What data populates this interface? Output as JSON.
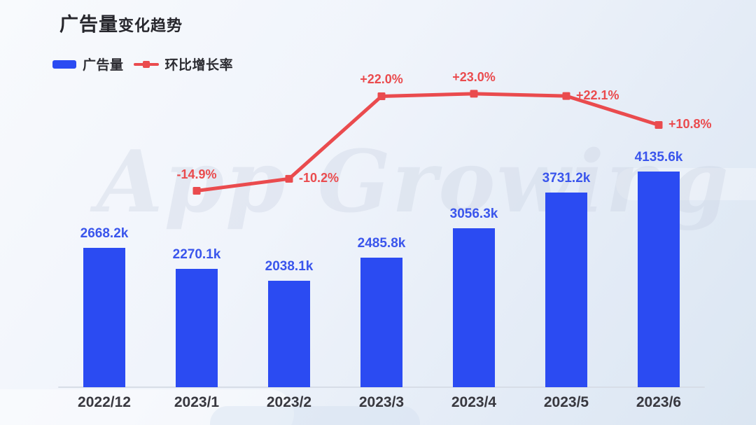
{
  "page": {
    "title_main": "广告量",
    "title_sub": "变化趋势",
    "watermark": "App Growing"
  },
  "colors": {
    "bar": "#2B4BF2",
    "bar_label": "#3A55EC",
    "line": "#EA4B4E",
    "axis_label": "#38383f",
    "axis_line": "#d7dde7",
    "title": "#26262c"
  },
  "legend": {
    "items": [
      {
        "label": "广告量",
        "type": "bar",
        "color": "#2B4BF2"
      },
      {
        "label": "环比增长率",
        "type": "line",
        "color": "#EA4B4E"
      }
    ]
  },
  "chart_data": {
    "type": "bar",
    "title": "广告量变化趋势",
    "categories": [
      "2022/12",
      "2023/1",
      "2023/2",
      "2023/3",
      "2023/4",
      "2023/5",
      "2023/6"
    ],
    "series": [
      {
        "name": "广告量",
        "type": "bar",
        "unit": "k",
        "values": [
          2668.2,
          2270.1,
          2038.1,
          2485.8,
          3056.3,
          3731.2,
          4135.6
        ],
        "labels": [
          "2668.2k",
          "2270.1k",
          "2038.1k",
          "2485.8k",
          "3056.3k",
          "3731.2k",
          "4135.6k"
        ],
        "color": "#2B4BF2"
      },
      {
        "name": "环比增长率",
        "type": "line",
        "unit": "%",
        "values": [
          null,
          -14.9,
          -10.2,
          22.0,
          23.0,
          22.1,
          10.8
        ],
        "labels": [
          null,
          "-14.9%",
          "-10.2%",
          "+22.0%",
          "+23.0%",
          "+22.1%",
          "+10.8%"
        ],
        "label_placements": [
          null,
          "top",
          "right",
          "top",
          "top",
          "right",
          "right"
        ],
        "color": "#EA4B4E"
      }
    ],
    "ylim_bar": [
      0,
      4500
    ],
    "ylim_line": [
      -40,
      40
    ],
    "grid": false,
    "legend_position": "top-left",
    "x_axis_line": true
  }
}
